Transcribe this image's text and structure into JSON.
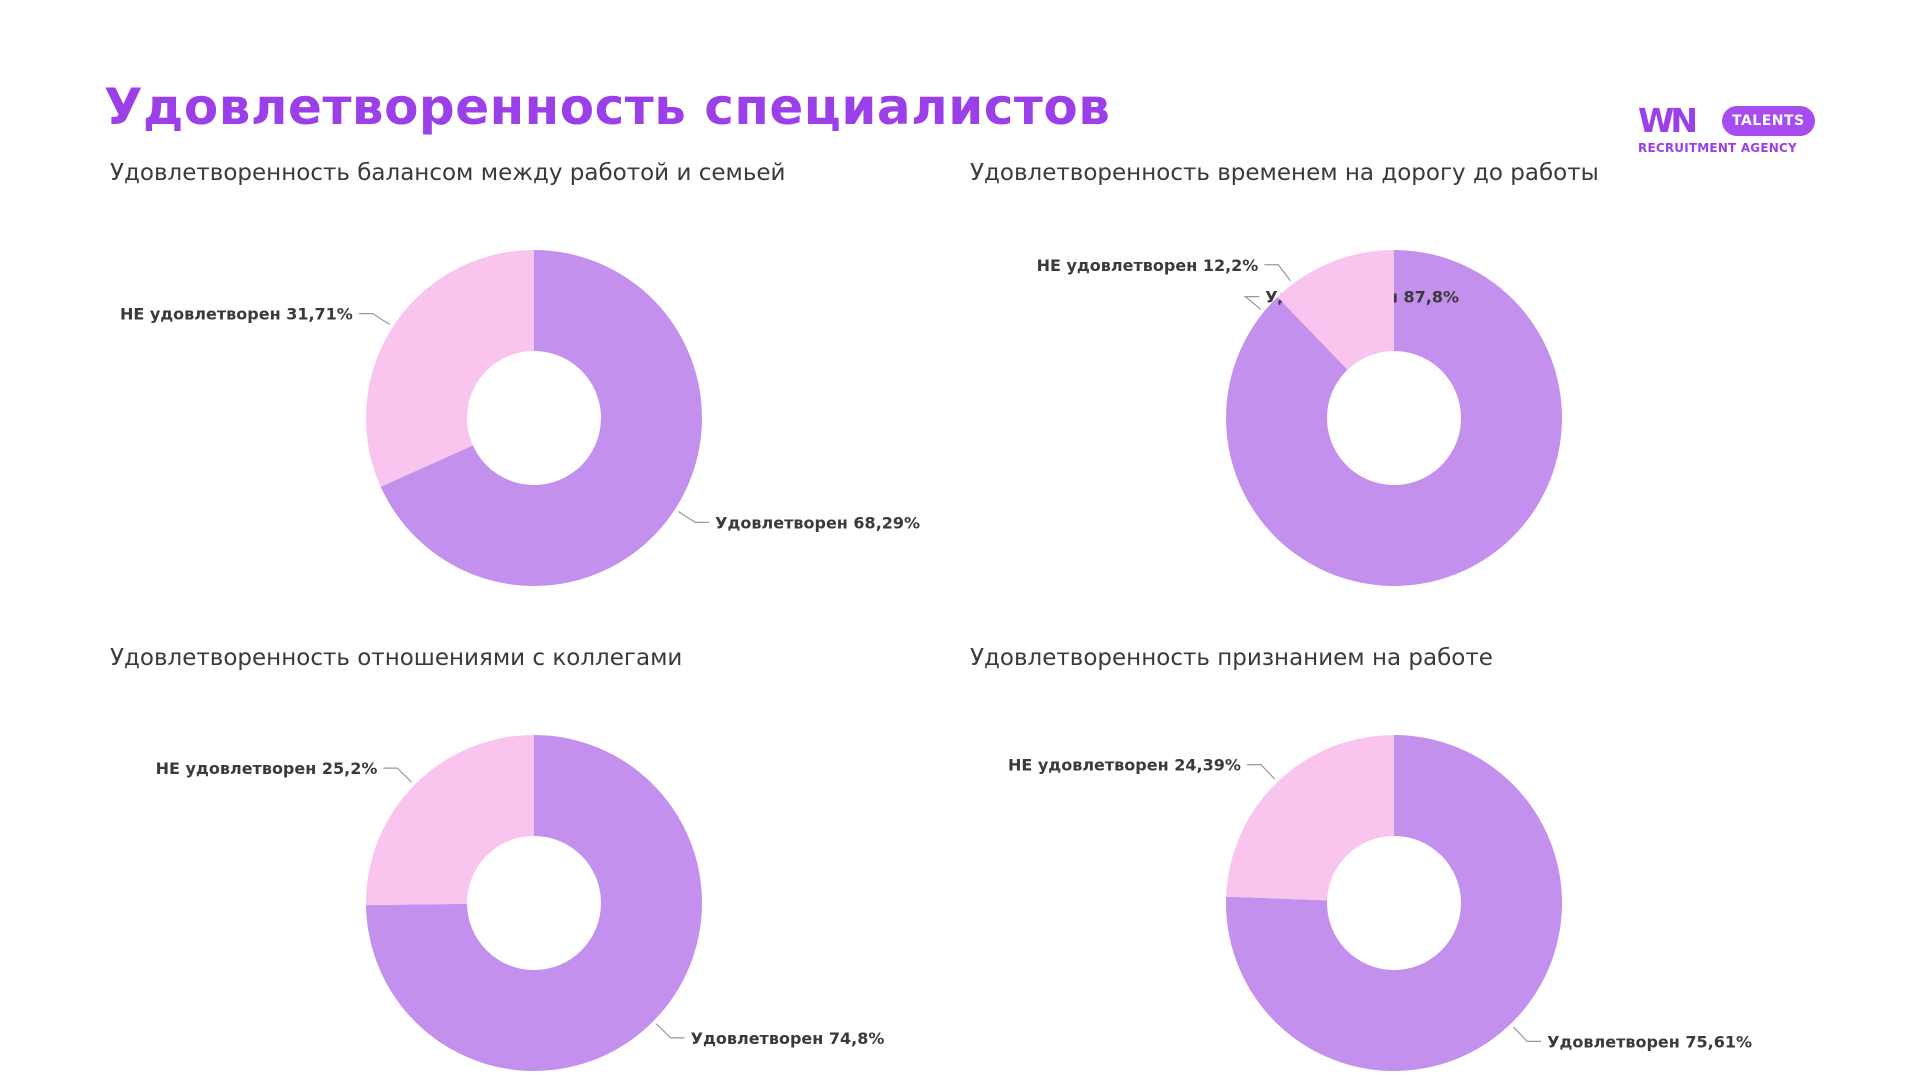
{
  "header": {
    "title": "Удовлетворенность специалистов"
  },
  "logo": {
    "mark": "WN",
    "pill": "TALENTS",
    "subtitle": "RECRUITMENT AGENCY"
  },
  "colors": {
    "accent": "#9b3fe8",
    "satisfied": "#c390ee",
    "not_satisfied": "#f9c5ef"
  },
  "chart_data": [
    {
      "type": "pie",
      "title": "Удовлетворенность балансом между работой и семьей",
      "donut": true,
      "slices": [
        {
          "label": "Удовлетворен 68,29%",
          "value": 68.29,
          "color": "#c390ee"
        },
        {
          "label": "НЕ удовлетворен 31,71%",
          "value": 31.71,
          "color": "#f9c5ef"
        }
      ]
    },
    {
      "type": "pie",
      "title": "Удовлетворенность временем на дорогу до работы",
      "donut": true,
      "slices": [
        {
          "label": "Удовлетворен 87,8%",
          "value": 87.8,
          "color": "#c390ee"
        },
        {
          "label": "НЕ удовлетворен 12,2%",
          "value": 12.2,
          "color": "#f9c5ef"
        }
      ]
    },
    {
      "type": "pie",
      "title": "Удовлетворенность отношениями с коллегами",
      "donut": true,
      "slices": [
        {
          "label": "Удовлетворен 74,8%",
          "value": 74.8,
          "color": "#c390ee"
        },
        {
          "label": "НЕ удовлетворен 25,2%",
          "value": 25.2,
          "color": "#f9c5ef"
        }
      ]
    },
    {
      "type": "pie",
      "title": "Удовлетворенность признанием на работе",
      "donut": true,
      "slices": [
        {
          "label": "Удовлетворен 75,61%",
          "value": 75.61,
          "color": "#c390ee"
        },
        {
          "label": "НЕ удовлетворен 24,39%",
          "value": 24.39,
          "color": "#f9c5ef"
        }
      ]
    }
  ]
}
